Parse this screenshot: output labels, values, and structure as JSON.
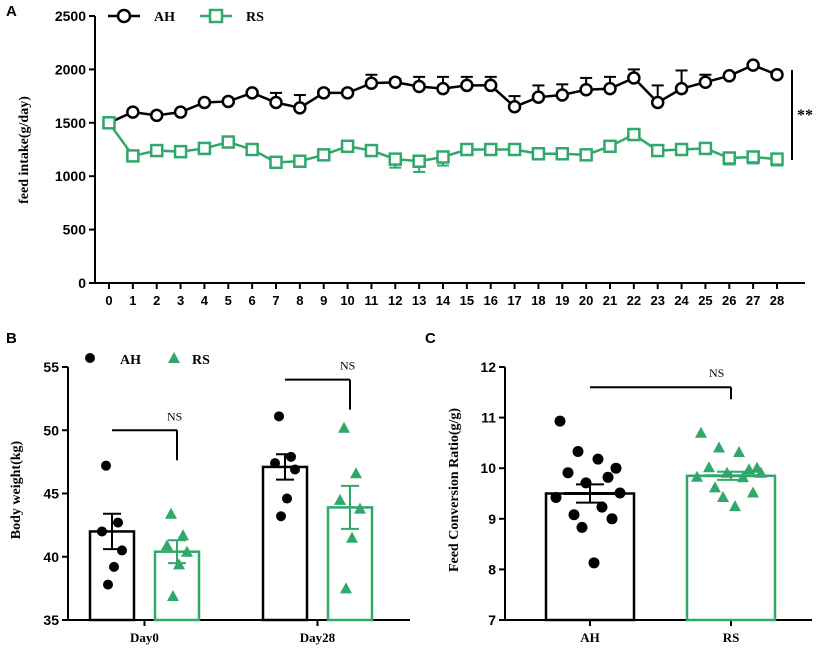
{
  "colors": {
    "ah": "#000000",
    "rs": "#2fa86a",
    "axis": "#000000"
  },
  "chart_data": [
    {
      "panel": "A",
      "type": "line",
      "ylabel": "feed intake(g/day)",
      "xlabel": "",
      "ylim": [
        0,
        2500
      ],
      "yticks": [
        "0",
        "500",
        "1000",
        "1500",
        "2000",
        "2500"
      ],
      "x": [
        "0",
        "1",
        "2",
        "3",
        "4",
        "5",
        "6",
        "7",
        "8",
        "9",
        "10",
        "11",
        "12",
        "13",
        "14",
        "15",
        "16",
        "17",
        "18",
        "19",
        "20",
        "21",
        "22",
        "23",
        "24",
        "25",
        "26",
        "27",
        "28"
      ],
      "series": [
        {
          "name": "AH",
          "marker": "circle",
          "values": [
            1500,
            1600,
            1570,
            1600,
            1690,
            1700,
            1780,
            1690,
            1640,
            1780,
            1780,
            1870,
            1880,
            1840,
            1820,
            1850,
            1850,
            1650,
            1740,
            1760,
            1810,
            1820,
            1920,
            1690,
            1820,
            1880,
            1940,
            2040,
            1950
          ],
          "errors": [
            0,
            20,
            20,
            20,
            20,
            20,
            20,
            90,
            120,
            30,
            30,
            80,
            30,
            90,
            110,
            80,
            80,
            100,
            110,
            100,
            110,
            110,
            80,
            160,
            170,
            70,
            20,
            20,
            30
          ]
        },
        {
          "name": "RS",
          "marker": "square",
          "values": [
            1500,
            1190,
            1240,
            1230,
            1260,
            1320,
            1250,
            1130,
            1140,
            1200,
            1280,
            1240,
            1160,
            1140,
            1180,
            1250,
            1250,
            1250,
            1210,
            1210,
            1200,
            1280,
            1390,
            1240,
            1250,
            1260,
            1170,
            1180,
            1160
          ],
          "errors": [
            0,
            40,
            40,
            30,
            30,
            30,
            30,
            40,
            40,
            30,
            30,
            40,
            80,
            100,
            80,
            30,
            30,
            30,
            30,
            30,
            30,
            30,
            30,
            40,
            30,
            30,
            60,
            60,
            60
          ]
        }
      ],
      "significance": "**"
    },
    {
      "panel": "B",
      "type": "bar",
      "ylabel": "Body weight(kg)",
      "ylim": [
        35,
        55
      ],
      "yticks": [
        "35",
        "40",
        "45",
        "50",
        "55"
      ],
      "categories": [
        "Day0",
        "Day28"
      ],
      "series": [
        {
          "name": "AH",
          "marker": "circle",
          "values": [
            42.0,
            47.1
          ],
          "sem": [
            1.4,
            1.0
          ],
          "points": [
            [
              47.2,
              42.7,
              42.0,
              40.5,
              39.2,
              37.8
            ],
            [
              51.1,
              47.9,
              47.4,
              46.9,
              44.6,
              43.2
            ]
          ]
        },
        {
          "name": "RS",
          "marker": "triangle",
          "values": [
            40.4,
            43.9
          ],
          "sem": [
            0.9,
            1.7
          ],
          "points": [
            [
              43.4,
              41.7,
              40.9,
              40.4,
              39.4,
              36.9
            ],
            [
              50.2,
              46.6,
              44.5,
              43.8,
              41.5,
              37.5
            ]
          ]
        }
      ],
      "comparisons": [
        "NS",
        "NS"
      ]
    },
    {
      "panel": "C",
      "type": "bar",
      "ylabel": "Feed Conversion Ratio(g/g)",
      "ylim": [
        7,
        12
      ],
      "yticks": [
        "7",
        "8",
        "9",
        "10",
        "11",
        "12"
      ],
      "categories": [
        "AH",
        "RS"
      ],
      "series": [
        {
          "name": "AH",
          "marker": "circle",
          "value": 9.5,
          "sem": 0.18,
          "points": [
            10.93,
            10.33,
            10.18,
            10.0,
            9.91,
            9.82,
            9.71,
            9.51,
            9.42,
            9.23,
            9.08,
            9.0,
            8.83,
            8.13
          ]
        },
        {
          "name": "RS",
          "marker": "triangle",
          "value": 9.85,
          "sem": 0.08,
          "points": [
            10.7,
            10.41,
            10.32,
            10.01,
            10.02,
            9.98,
            9.91,
            9.91,
            9.83,
            9.82,
            9.62,
            9.52,
            9.43,
            9.25
          ]
        }
      ],
      "comparisons": [
        "NS"
      ]
    }
  ],
  "panels": {
    "a": "A",
    "b": "B",
    "c": "C"
  }
}
